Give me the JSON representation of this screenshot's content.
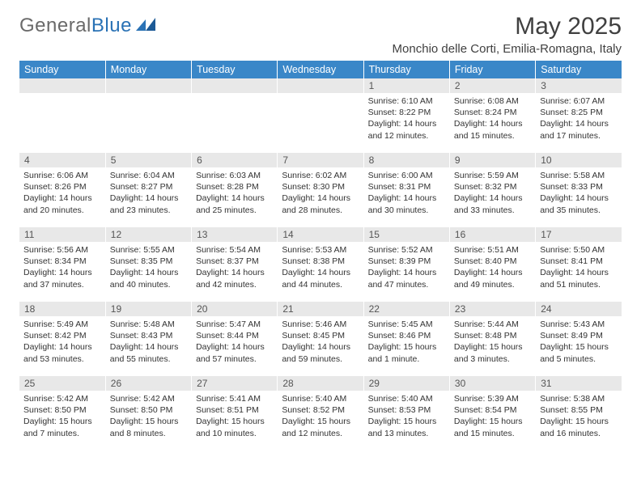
{
  "logo": {
    "text1": "General",
    "text2": "Blue"
  },
  "title": "May 2025",
  "location": "Monchio delle Corti, Emilia-Romagna, Italy",
  "colors": {
    "header_bg": "#3a87c8",
    "header_text": "#ffffff",
    "daynum_bg": "#e8e8e8",
    "daynum_text": "#555555",
    "body_text": "#333333",
    "logo_gray": "#6a6a6a",
    "logo_blue": "#2a72b5",
    "title_color": "#404040"
  },
  "weekdays": [
    "Sunday",
    "Monday",
    "Tuesday",
    "Wednesday",
    "Thursday",
    "Friday",
    "Saturday"
  ],
  "weeks": [
    [
      {
        "n": "",
        "sunrise": "",
        "sunset": "",
        "daylight": ""
      },
      {
        "n": "",
        "sunrise": "",
        "sunset": "",
        "daylight": ""
      },
      {
        "n": "",
        "sunrise": "",
        "sunset": "",
        "daylight": ""
      },
      {
        "n": "",
        "sunrise": "",
        "sunset": "",
        "daylight": ""
      },
      {
        "n": "1",
        "sunrise": "Sunrise: 6:10 AM",
        "sunset": "Sunset: 8:22 PM",
        "daylight": "Daylight: 14 hours and 12 minutes."
      },
      {
        "n": "2",
        "sunrise": "Sunrise: 6:08 AM",
        "sunset": "Sunset: 8:24 PM",
        "daylight": "Daylight: 14 hours and 15 minutes."
      },
      {
        "n": "3",
        "sunrise": "Sunrise: 6:07 AM",
        "sunset": "Sunset: 8:25 PM",
        "daylight": "Daylight: 14 hours and 17 minutes."
      }
    ],
    [
      {
        "n": "4",
        "sunrise": "Sunrise: 6:06 AM",
        "sunset": "Sunset: 8:26 PM",
        "daylight": "Daylight: 14 hours and 20 minutes."
      },
      {
        "n": "5",
        "sunrise": "Sunrise: 6:04 AM",
        "sunset": "Sunset: 8:27 PM",
        "daylight": "Daylight: 14 hours and 23 minutes."
      },
      {
        "n": "6",
        "sunrise": "Sunrise: 6:03 AM",
        "sunset": "Sunset: 8:28 PM",
        "daylight": "Daylight: 14 hours and 25 minutes."
      },
      {
        "n": "7",
        "sunrise": "Sunrise: 6:02 AM",
        "sunset": "Sunset: 8:30 PM",
        "daylight": "Daylight: 14 hours and 28 minutes."
      },
      {
        "n": "8",
        "sunrise": "Sunrise: 6:00 AM",
        "sunset": "Sunset: 8:31 PM",
        "daylight": "Daylight: 14 hours and 30 minutes."
      },
      {
        "n": "9",
        "sunrise": "Sunrise: 5:59 AM",
        "sunset": "Sunset: 8:32 PM",
        "daylight": "Daylight: 14 hours and 33 minutes."
      },
      {
        "n": "10",
        "sunrise": "Sunrise: 5:58 AM",
        "sunset": "Sunset: 8:33 PM",
        "daylight": "Daylight: 14 hours and 35 minutes."
      }
    ],
    [
      {
        "n": "11",
        "sunrise": "Sunrise: 5:56 AM",
        "sunset": "Sunset: 8:34 PM",
        "daylight": "Daylight: 14 hours and 37 minutes."
      },
      {
        "n": "12",
        "sunrise": "Sunrise: 5:55 AM",
        "sunset": "Sunset: 8:35 PM",
        "daylight": "Daylight: 14 hours and 40 minutes."
      },
      {
        "n": "13",
        "sunrise": "Sunrise: 5:54 AM",
        "sunset": "Sunset: 8:37 PM",
        "daylight": "Daylight: 14 hours and 42 minutes."
      },
      {
        "n": "14",
        "sunrise": "Sunrise: 5:53 AM",
        "sunset": "Sunset: 8:38 PM",
        "daylight": "Daylight: 14 hours and 44 minutes."
      },
      {
        "n": "15",
        "sunrise": "Sunrise: 5:52 AM",
        "sunset": "Sunset: 8:39 PM",
        "daylight": "Daylight: 14 hours and 47 minutes."
      },
      {
        "n": "16",
        "sunrise": "Sunrise: 5:51 AM",
        "sunset": "Sunset: 8:40 PM",
        "daylight": "Daylight: 14 hours and 49 minutes."
      },
      {
        "n": "17",
        "sunrise": "Sunrise: 5:50 AM",
        "sunset": "Sunset: 8:41 PM",
        "daylight": "Daylight: 14 hours and 51 minutes."
      }
    ],
    [
      {
        "n": "18",
        "sunrise": "Sunrise: 5:49 AM",
        "sunset": "Sunset: 8:42 PM",
        "daylight": "Daylight: 14 hours and 53 minutes."
      },
      {
        "n": "19",
        "sunrise": "Sunrise: 5:48 AM",
        "sunset": "Sunset: 8:43 PM",
        "daylight": "Daylight: 14 hours and 55 minutes."
      },
      {
        "n": "20",
        "sunrise": "Sunrise: 5:47 AM",
        "sunset": "Sunset: 8:44 PM",
        "daylight": "Daylight: 14 hours and 57 minutes."
      },
      {
        "n": "21",
        "sunrise": "Sunrise: 5:46 AM",
        "sunset": "Sunset: 8:45 PM",
        "daylight": "Daylight: 14 hours and 59 minutes."
      },
      {
        "n": "22",
        "sunrise": "Sunrise: 5:45 AM",
        "sunset": "Sunset: 8:46 PM",
        "daylight": "Daylight: 15 hours and 1 minute."
      },
      {
        "n": "23",
        "sunrise": "Sunrise: 5:44 AM",
        "sunset": "Sunset: 8:48 PM",
        "daylight": "Daylight: 15 hours and 3 minutes."
      },
      {
        "n": "24",
        "sunrise": "Sunrise: 5:43 AM",
        "sunset": "Sunset: 8:49 PM",
        "daylight": "Daylight: 15 hours and 5 minutes."
      }
    ],
    [
      {
        "n": "25",
        "sunrise": "Sunrise: 5:42 AM",
        "sunset": "Sunset: 8:50 PM",
        "daylight": "Daylight: 15 hours and 7 minutes."
      },
      {
        "n": "26",
        "sunrise": "Sunrise: 5:42 AM",
        "sunset": "Sunset: 8:50 PM",
        "daylight": "Daylight: 15 hours and 8 minutes."
      },
      {
        "n": "27",
        "sunrise": "Sunrise: 5:41 AM",
        "sunset": "Sunset: 8:51 PM",
        "daylight": "Daylight: 15 hours and 10 minutes."
      },
      {
        "n": "28",
        "sunrise": "Sunrise: 5:40 AM",
        "sunset": "Sunset: 8:52 PM",
        "daylight": "Daylight: 15 hours and 12 minutes."
      },
      {
        "n": "29",
        "sunrise": "Sunrise: 5:40 AM",
        "sunset": "Sunset: 8:53 PM",
        "daylight": "Daylight: 15 hours and 13 minutes."
      },
      {
        "n": "30",
        "sunrise": "Sunrise: 5:39 AM",
        "sunset": "Sunset: 8:54 PM",
        "daylight": "Daylight: 15 hours and 15 minutes."
      },
      {
        "n": "31",
        "sunrise": "Sunrise: 5:38 AM",
        "sunset": "Sunset: 8:55 PM",
        "daylight": "Daylight: 15 hours and 16 minutes."
      }
    ]
  ]
}
